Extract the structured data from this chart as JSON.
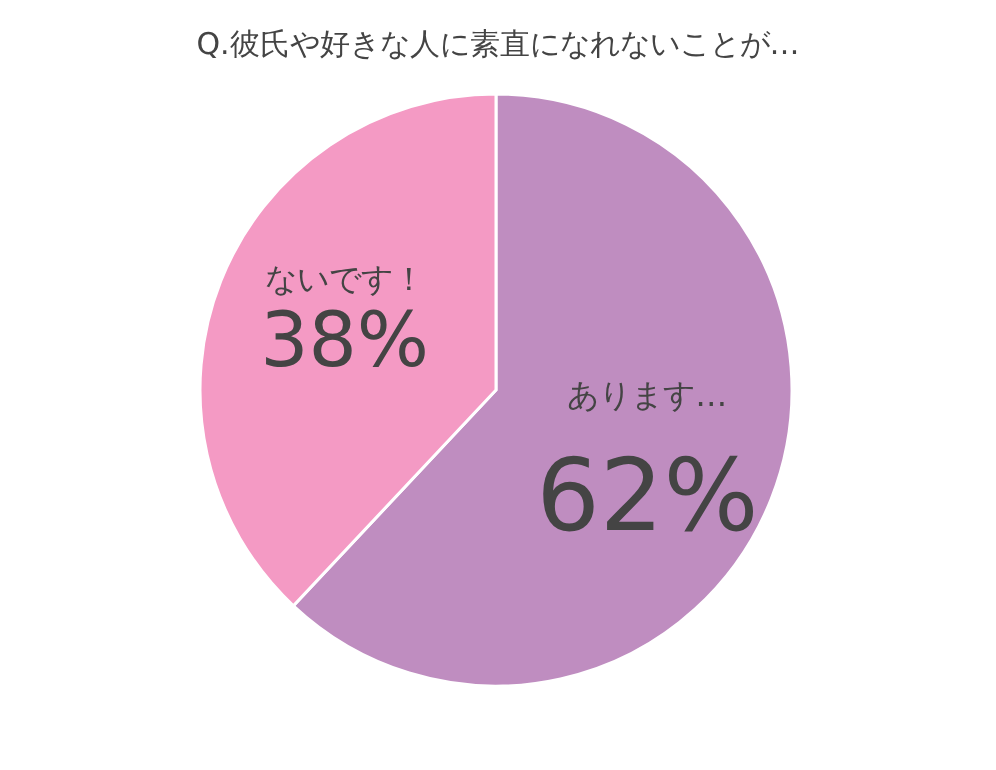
{
  "chart_data": {
    "type": "pie",
    "title": "Q.彼氏や好きな人に素直になれないことが…",
    "categories": [
      "あります…",
      "ないです！"
    ],
    "values": [
      62,
      38
    ],
    "value_labels": [
      "62%",
      "38%"
    ],
    "colors": [
      "#bf8dc0",
      "#f49ac4"
    ]
  }
}
